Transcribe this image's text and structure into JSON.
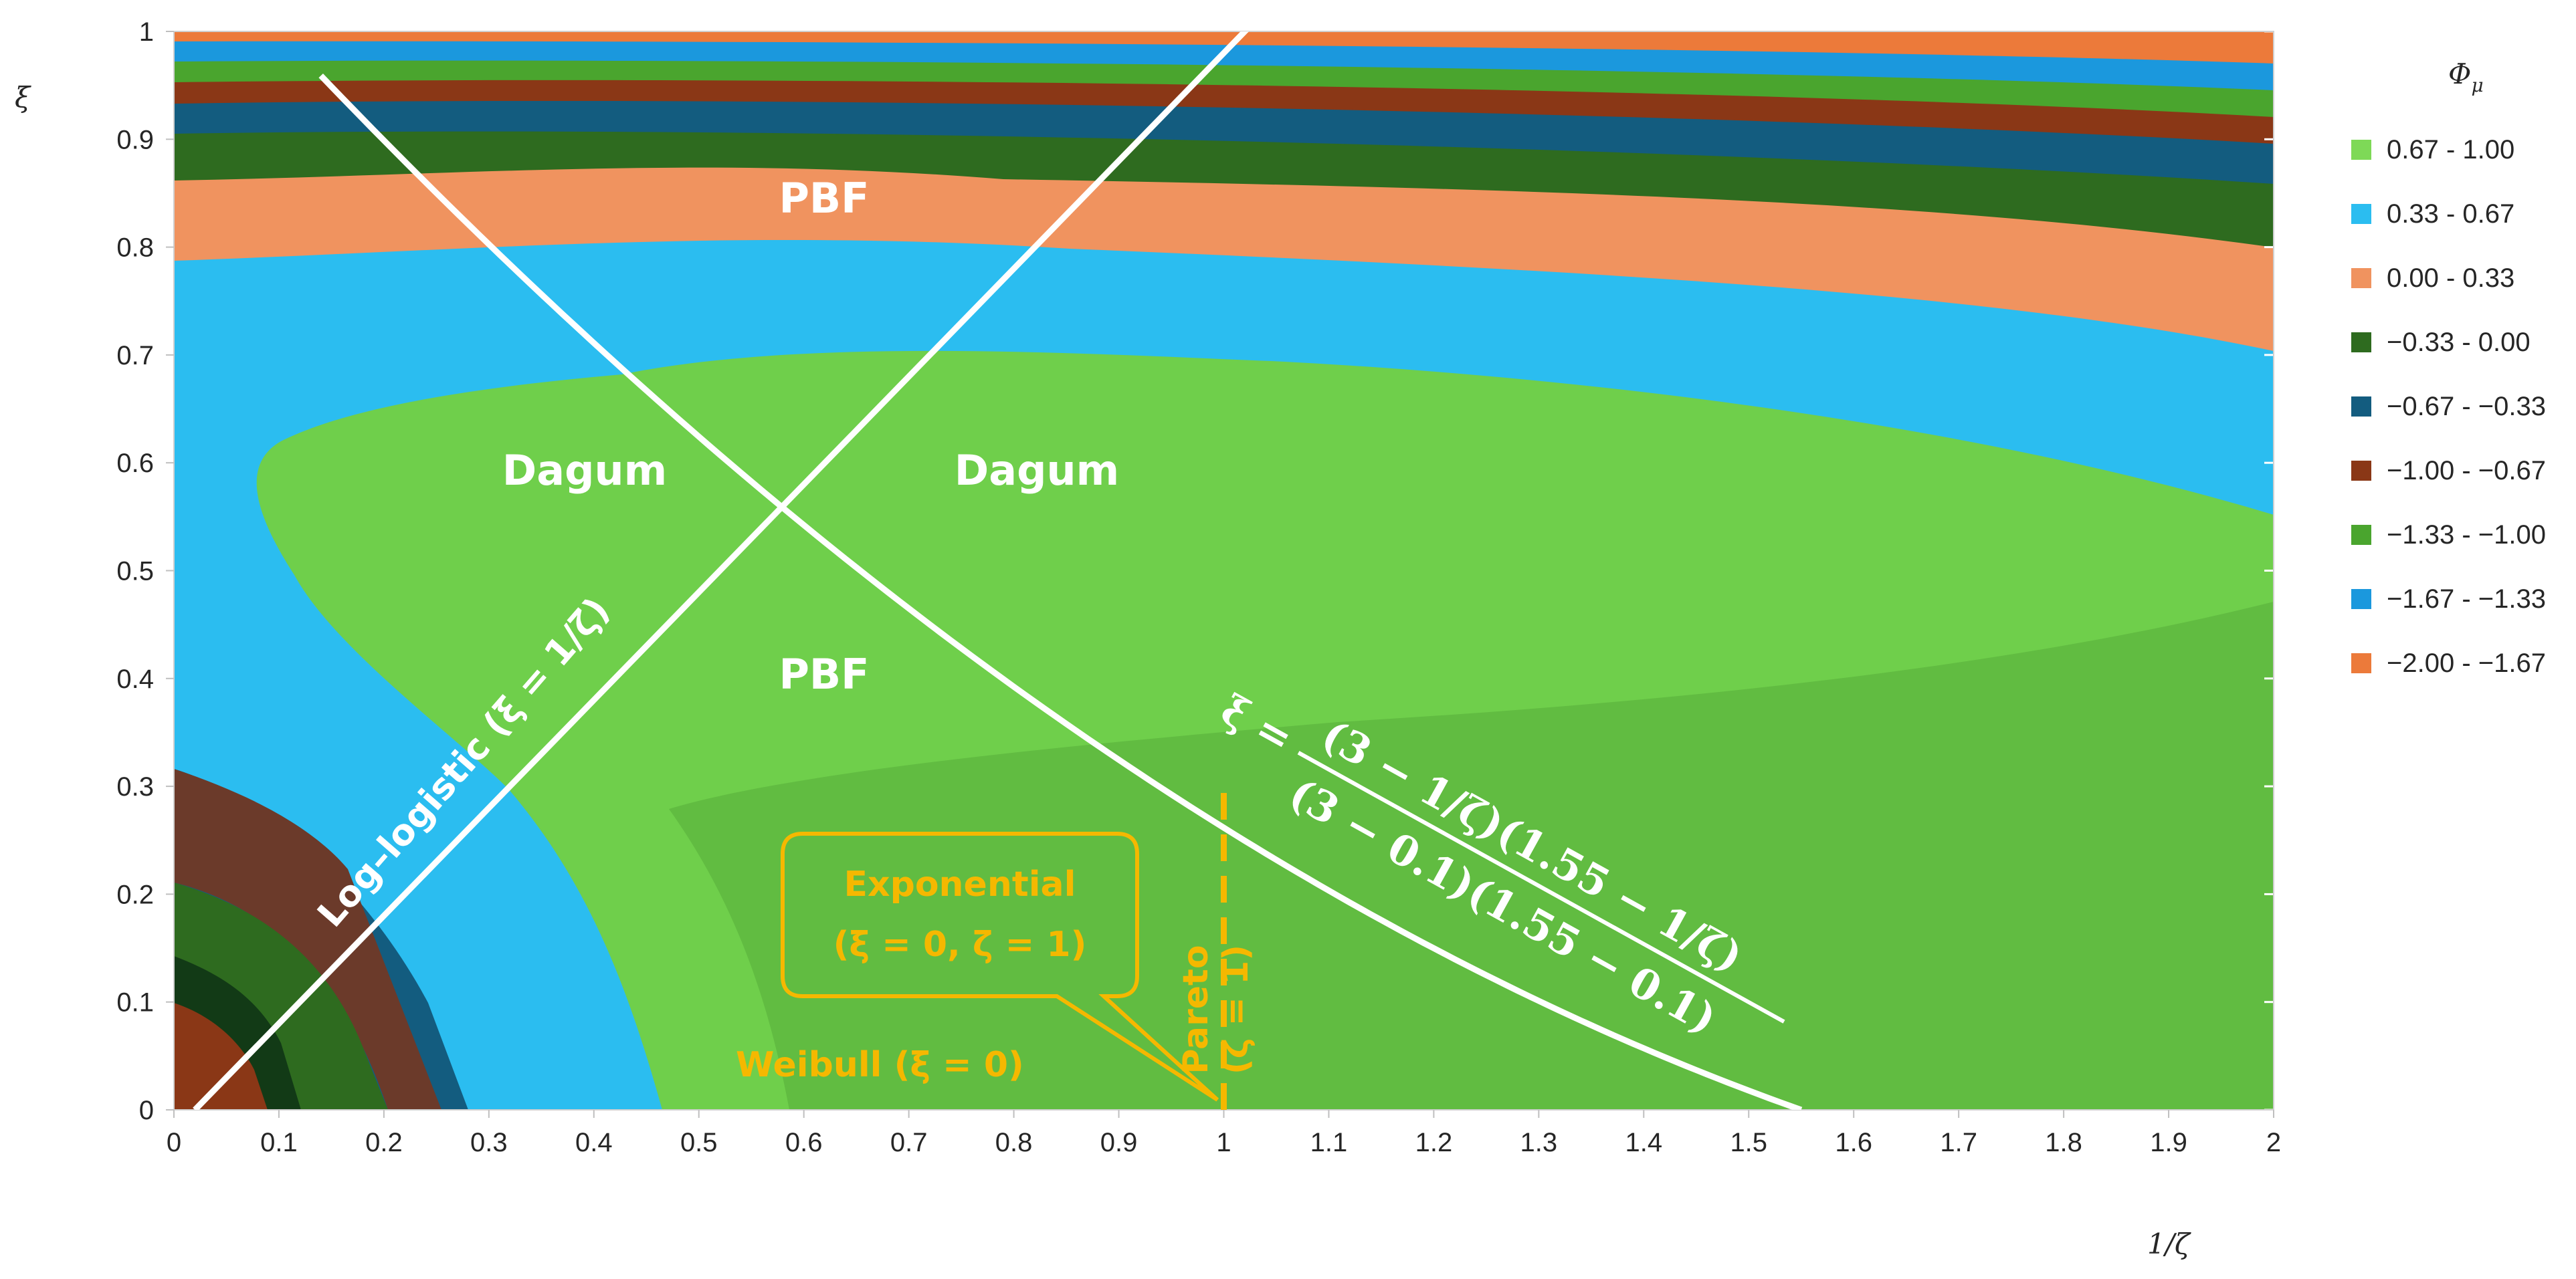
{
  "chart_data": {
    "type": "heatmap",
    "xlabel": "1/ζ",
    "ylabel": "ξ",
    "xlim": [
      0,
      2
    ],
    "ylim": [
      0,
      1
    ],
    "x_ticks": [
      "0",
      "0.1",
      "0.2",
      "0.3",
      "0.4",
      "0.5",
      "0.6",
      "0.7",
      "0.8",
      "0.9",
      "1",
      "1.1",
      "1.2",
      "1.3",
      "1.4",
      "1.5",
      "1.6",
      "1.7",
      "1.8",
      "1.9",
      "2"
    ],
    "y_ticks": [
      "0",
      "0.1",
      "0.2",
      "0.3",
      "0.4",
      "0.5",
      "0.6",
      "0.7",
      "0.8",
      "0.9",
      "1"
    ],
    "legend": {
      "title": "Φμ",
      "position": "right",
      "entries": [
        {
          "label": "0.67 - 1.00",
          "color": "#7ed957"
        },
        {
          "label": "0.33 - 0.67",
          "color": "#2bbdf0"
        },
        {
          "label": "0.00 - 0.33",
          "color": "#f0935f"
        },
        {
          "label": "−0.33 - 0.00",
          "color": "#2e6b1f"
        },
        {
          "label": "−0.67 - −0.33",
          "color": "#135c7f"
        },
        {
          "label": "−1.00 - −0.67",
          "color": "#8a3716"
        },
        {
          "label": "−1.33 - −1.00",
          "color": "#4aa52e"
        },
        {
          "label": "−1.67 - −1.33",
          "color": "#1b98dd"
        },
        {
          "label": "−2.00 - −1.67",
          "color": "#ec7a3a"
        }
      ]
    },
    "annotations": {
      "region_labels": [
        "PBF",
        "Dagum",
        "Dagum",
        "PBF"
      ],
      "loglogistic": "Log–logistic (ξ = 1/ζ)",
      "formula_left": "ξ =",
      "formula_numerator": "(3 − 1/ζ)(1.55 − 1/ζ)",
      "formula_denominator": "(3 − 0.1)(1.55 − 0.1)",
      "exponential_line1": "Exponential",
      "exponential_line2": "(ξ = 0, ζ = 1)",
      "weibull": "Weibull (ξ = 0)",
      "pareto_line1": "Pareto",
      "pareto_line2": "(ζ = 1)"
    },
    "curves": [
      {
        "name": "Log–logistic",
        "equation": "ξ = 1/ζ − 0.02",
        "x_range": [
          0.02,
          1.02
        ]
      },
      {
        "name": "ξ = (3 − 1/ζ)(1.55 − 1/ζ)/((3 − 0.1)(1.55 − 0.1))",
        "x_range": [
          0.15,
          1.55
        ]
      },
      {
        "name": "Pareto",
        "equation": "1/ζ = 1",
        "y_range": [
          0,
          0.3
        ]
      }
    ]
  }
}
